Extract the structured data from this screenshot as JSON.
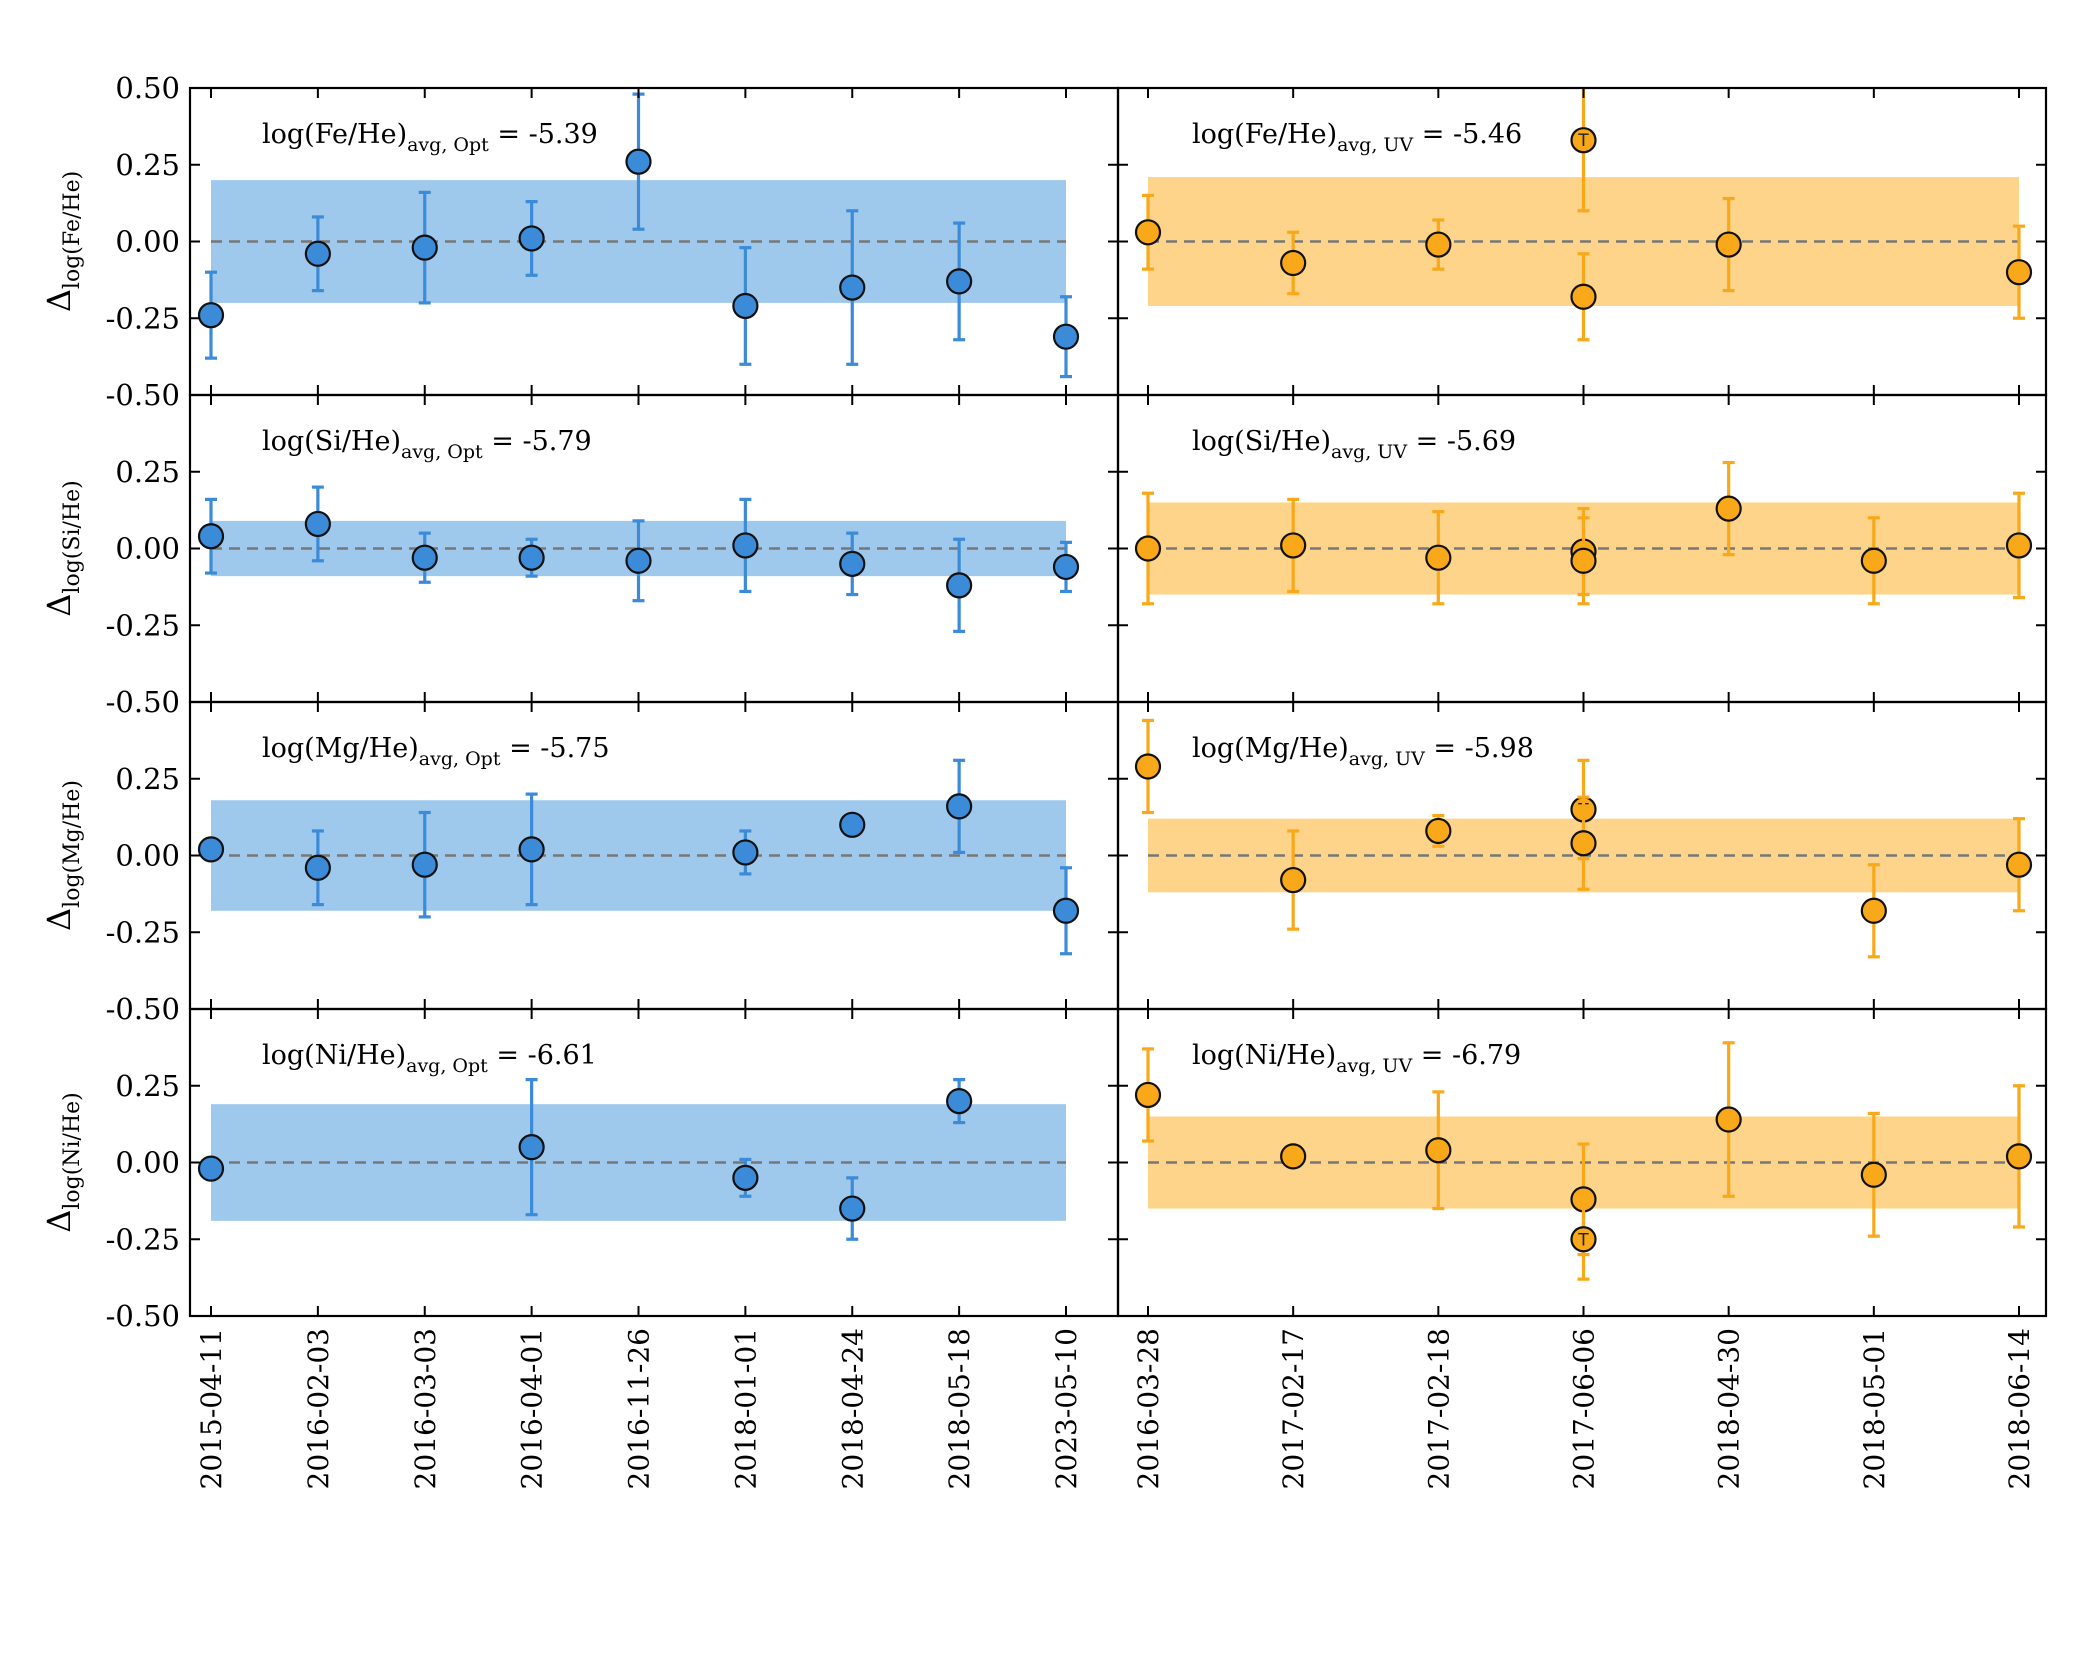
{
  "colors": {
    "opt_point": "#3b8bd8",
    "opt_band": "#9ec8ec",
    "uv_point": "#f9a81a",
    "uv_band": "#fdd48a",
    "zero_line": "#777777"
  },
  "chart_data": [
    {
      "type": "scatter",
      "panel": "optical",
      "rows": [
        "Fe",
        "Si",
        "Mg",
        "Ni"
      ],
      "x_categories": [
        "2015-04-11",
        "2016-02-03",
        "2016-03-03",
        "2016-04-01",
        "2016-11-26",
        "2018-01-01",
        "2018-04-24",
        "2018-05-18",
        "2023-05-10"
      ],
      "ylim": [
        -0.5,
        0.5
      ],
      "yticks": [
        "0.50",
        "0.25",
        "0.00",
        "-0.25",
        "-0.50"
      ],
      "grid": false,
      "subplots": [
        {
          "element": "Fe",
          "ylabel": "Δlog(Fe/He)",
          "ylabel_main": "Δ",
          "ylabel_sub": "log(Fe/He)",
          "annotation_main": "log(Fe/He)",
          "annotation_sub": "avg, Opt",
          "annotation_value": " = -5.39",
          "band": [
            -0.2,
            0.2
          ],
          "points": [
            {
              "x": "2015-04-11",
              "y": -0.24,
              "err": 0.14
            },
            {
              "x": "2016-02-03",
              "y": -0.04,
              "err": 0.12
            },
            {
              "x": "2016-03-03",
              "y": -0.02,
              "err": 0.18
            },
            {
              "x": "2016-04-01",
              "y": 0.01,
              "err": 0.12
            },
            {
              "x": "2016-11-26",
              "y": 0.26,
              "err": 0.22
            },
            {
              "x": "2018-01-01",
              "y": -0.21,
              "err": 0.19
            },
            {
              "x": "2018-04-24",
              "y": -0.15,
              "err": 0.25
            },
            {
              "x": "2018-05-18",
              "y": -0.13,
              "err": 0.19
            },
            {
              "x": "2023-05-10",
              "y": -0.31,
              "err": 0.13
            }
          ]
        },
        {
          "element": "Si",
          "ylabel": "Δlog(Si/He)",
          "ylabel_main": "Δ",
          "ylabel_sub": "log(Si/He)",
          "annotation_main": "log(Si/He)",
          "annotation_sub": "avg, Opt",
          "annotation_value": " = -5.79",
          "band": [
            -0.09,
            0.09
          ],
          "points": [
            {
              "x": "2015-04-11",
              "y": 0.04,
              "err": 0.12
            },
            {
              "x": "2016-02-03",
              "y": 0.08,
              "err": 0.12
            },
            {
              "x": "2016-03-03",
              "y": -0.03,
              "err": 0.08
            },
            {
              "x": "2016-04-01",
              "y": -0.03,
              "err": 0.06
            },
            {
              "x": "2016-11-26",
              "y": -0.04,
              "err": 0.13
            },
            {
              "x": "2018-01-01",
              "y": 0.01,
              "err": 0.15
            },
            {
              "x": "2018-04-24",
              "y": -0.05,
              "err": 0.1
            },
            {
              "x": "2018-05-18",
              "y": -0.12,
              "err": 0.15
            },
            {
              "x": "2023-05-10",
              "y": -0.06,
              "err": 0.08
            }
          ]
        },
        {
          "element": "Mg",
          "ylabel": "Δlog(Mg/He)",
          "ylabel_main": "Δ",
          "ylabel_sub": "log(Mg/He)",
          "annotation_main": "log(Mg/He)",
          "annotation_sub": "avg, Opt",
          "annotation_value": " = -5.75",
          "band": [
            -0.18,
            0.18
          ],
          "points": [
            {
              "x": "2015-04-11",
              "y": 0.02,
              "err": 0.0
            },
            {
              "x": "2016-02-03",
              "y": -0.04,
              "err": 0.12
            },
            {
              "x": "2016-03-03",
              "y": -0.03,
              "err": 0.17
            },
            {
              "x": "2016-04-01",
              "y": 0.02,
              "err": 0.18
            },
            {
              "x": "2018-01-01",
              "y": 0.01,
              "err": 0.07
            },
            {
              "x": "2018-04-24",
              "y": 0.1,
              "err": 0.0
            },
            {
              "x": "2018-05-18",
              "y": 0.16,
              "err": 0.15
            },
            {
              "x": "2023-05-10",
              "y": -0.18,
              "err": 0.14
            }
          ]
        },
        {
          "element": "Ni",
          "ylabel": "Δlog(Ni/He)",
          "ylabel_main": "Δ",
          "ylabel_sub": "log(Ni/He)",
          "annotation_main": "log(Ni/He)",
          "annotation_sub": "avg, Opt",
          "annotation_value": " = -6.61",
          "band": [
            -0.19,
            0.19
          ],
          "points": [
            {
              "x": "2015-04-11",
              "y": -0.02,
              "err": 0.0
            },
            {
              "x": "2016-04-01",
              "y": 0.05,
              "err": 0.22
            },
            {
              "x": "2018-01-01",
              "y": -0.05,
              "err": 0.06
            },
            {
              "x": "2018-04-24",
              "y": -0.15,
              "err": 0.1
            },
            {
              "x": "2018-05-18",
              "y": 0.2,
              "err": 0.07
            }
          ]
        }
      ]
    },
    {
      "type": "scatter",
      "panel": "uv",
      "rows": [
        "Fe",
        "Si",
        "Mg",
        "Ni"
      ],
      "x_categories": [
        "2016-03-28",
        "2017-02-17",
        "2017-02-18",
        "2017-06-06",
        "2018-04-30",
        "2018-05-01",
        "2018-06-14"
      ],
      "ylim": [
        -0.5,
        0.5
      ],
      "grid": false,
      "subplots": [
        {
          "element": "Fe",
          "annotation_main": "log(Fe/He)",
          "annotation_sub": "avg, UV",
          "annotation_value": " = -5.46",
          "band": [
            -0.21,
            0.21
          ],
          "points": [
            {
              "x": "2016-03-28",
              "y": 0.03,
              "err": 0.12
            },
            {
              "x": "2017-02-17",
              "y": -0.07,
              "err": 0.1
            },
            {
              "x": "2017-02-18",
              "y": -0.01,
              "err": 0.08
            },
            {
              "x": "2017-06-06",
              "y": 0.33,
              "err": 0.23,
              "marker": "T"
            },
            {
              "x": "2017-06-06",
              "y": -0.18,
              "err": 0.14
            },
            {
              "x": "2018-04-30",
              "y": -0.01,
              "err": 0.15
            },
            {
              "x": "2018-06-14",
              "y": -0.1,
              "err": 0.15
            }
          ]
        },
        {
          "element": "Si",
          "annotation_main": "log(Si/He)",
          "annotation_sub": "avg, UV",
          "annotation_value": " = -5.69",
          "band": [
            -0.15,
            0.15
          ],
          "points": [
            {
              "x": "2016-03-28",
              "y": 0.0,
              "err": 0.18
            },
            {
              "x": "2017-02-17",
              "y": 0.01,
              "err": 0.15
            },
            {
              "x": "2017-02-18",
              "y": -0.03,
              "err": 0.15
            },
            {
              "x": "2017-06-06",
              "y": -0.01,
              "err": 0.14
            },
            {
              "x": "2017-06-06",
              "y": -0.04,
              "err": 0.14
            },
            {
              "x": "2018-04-30",
              "y": 0.13,
              "err": 0.15
            },
            {
              "x": "2018-05-01",
              "y": -0.04,
              "err": 0.14
            },
            {
              "x": "2018-06-14",
              "y": 0.01,
              "err": 0.17
            }
          ]
        },
        {
          "element": "Mg",
          "annotation_main": "log(Mg/He)",
          "annotation_sub": "avg, UV",
          "annotation_value": " = -5.98",
          "band": [
            -0.12,
            0.12
          ],
          "points": [
            {
              "x": "2016-03-28",
              "y": 0.29,
              "err": 0.15
            },
            {
              "x": "2017-02-17",
              "y": -0.08,
              "err": 0.16
            },
            {
              "x": "2017-02-18",
              "y": 0.08,
              "err": 0.05
            },
            {
              "x": "2017-06-06",
              "y": 0.15,
              "err": 0.16,
              "marker": "T"
            },
            {
              "x": "2017-06-06",
              "y": 0.04,
              "err": 0.15
            },
            {
              "x": "2018-05-01",
              "y": -0.18,
              "err": 0.15
            },
            {
              "x": "2018-06-14",
              "y": -0.03,
              "err": 0.15
            }
          ]
        },
        {
          "element": "Ni",
          "annotation_main": "log(Ni/He)",
          "annotation_sub": "avg, UV",
          "annotation_value": " = -6.79",
          "band": [
            -0.15,
            0.15
          ],
          "points": [
            {
              "x": "2016-03-28",
              "y": 0.22,
              "err": 0.15
            },
            {
              "x": "2017-02-17",
              "y": 0.02,
              "err": 0.0
            },
            {
              "x": "2017-02-18",
              "y": 0.04,
              "err": 0.19
            },
            {
              "x": "2017-06-06",
              "y": -0.12,
              "err": 0.18
            },
            {
              "x": "2017-06-06",
              "y": -0.25,
              "err": 0.13,
              "marker": "T"
            },
            {
              "x": "2018-04-30",
              "y": 0.14,
              "err": 0.25
            },
            {
              "x": "2018-05-01",
              "y": -0.04,
              "err": 0.2
            },
            {
              "x": "2018-06-14",
              "y": 0.02,
              "err": 0.23
            }
          ]
        }
      ]
    }
  ]
}
